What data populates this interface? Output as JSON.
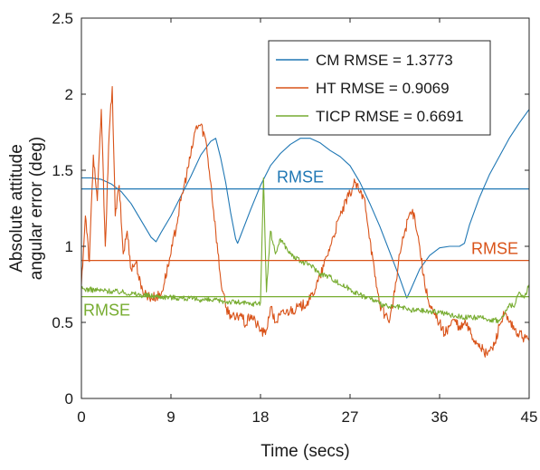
{
  "chart_data": {
    "type": "line",
    "title": "",
    "xlabel": "Time (secs)",
    "ylabel_lines": [
      "Absolute attitude",
      "angular error (deg)"
    ],
    "xlim": [
      0,
      45
    ],
    "ylim": [
      0,
      2.5
    ],
    "xticks": [
      0,
      9,
      18,
      27,
      36,
      45
    ],
    "yticks": [
      0,
      0.5,
      1,
      1.5,
      2,
      2.5
    ],
    "xtick_labels": [
      "0",
      "9",
      "18",
      "27",
      "36",
      "45"
    ],
    "ytick_labels": [
      "0",
      "0.5",
      "1",
      "1.5",
      "2",
      "2.5"
    ],
    "grid": false,
    "legend_position": "top-right",
    "colors": {
      "CM": "#1f77b4",
      "HT": "#d95319",
      "TICP": "#77ac30"
    },
    "series": [
      {
        "name": "CM RMSE = 1.3773",
        "key": "CM",
        "rmse": 1.3773,
        "points": [
          [
            0,
            1.45
          ],
          [
            1,
            1.45
          ],
          [
            2,
            1.44
          ],
          [
            3,
            1.41
          ],
          [
            4,
            1.36
          ],
          [
            5,
            1.28
          ],
          [
            6,
            1.17
          ],
          [
            7,
            1.06
          ],
          [
            7.5,
            1.03
          ],
          [
            8,
            1.09
          ],
          [
            9,
            1.2
          ],
          [
            10,
            1.33
          ],
          [
            11,
            1.46
          ],
          [
            12,
            1.6
          ],
          [
            13,
            1.69
          ],
          [
            13.5,
            1.71
          ],
          [
            14,
            1.58
          ],
          [
            14.5,
            1.42
          ],
          [
            15,
            1.22
          ],
          [
            15.5,
            1.05
          ],
          [
            15.7,
            1.02
          ],
          [
            16,
            1.07
          ],
          [
            17,
            1.24
          ],
          [
            18,
            1.4
          ],
          [
            19,
            1.53
          ],
          [
            20,
            1.61
          ],
          [
            21,
            1.67
          ],
          [
            22,
            1.71
          ],
          [
            23,
            1.71
          ],
          [
            24,
            1.68
          ],
          [
            25,
            1.63
          ],
          [
            26,
            1.59
          ],
          [
            27,
            1.53
          ],
          [
            28,
            1.42
          ],
          [
            29,
            1.28
          ],
          [
            30,
            1.13
          ],
          [
            31,
            0.96
          ],
          [
            32,
            0.79
          ],
          [
            32.7,
            0.66
          ],
          [
            33,
            0.7
          ],
          [
            34,
            0.85
          ],
          [
            35,
            0.94
          ],
          [
            36,
            0.99
          ],
          [
            37,
            1.0
          ],
          [
            38,
            1.0
          ],
          [
            38.5,
            1.02
          ],
          [
            39,
            1.14
          ],
          [
            40,
            1.32
          ],
          [
            41,
            1.47
          ],
          [
            42,
            1.59
          ],
          [
            43,
            1.71
          ],
          [
            44,
            1.81
          ],
          [
            45,
            1.9
          ]
        ]
      },
      {
        "name": "HT RMSE = 0.9069",
        "key": "HT",
        "rmse": 0.9069,
        "points": [
          [
            0,
            0.75
          ],
          [
            0.4,
            1.2
          ],
          [
            0.8,
            0.9
          ],
          [
            1.2,
            1.6
          ],
          [
            1.6,
            1.3
          ],
          [
            2,
            1.9
          ],
          [
            2.4,
            1.0
          ],
          [
            2.8,
            1.75
          ],
          [
            3.1,
            2.05
          ],
          [
            3.4,
            1.2
          ],
          [
            3.8,
            1.4
          ],
          [
            4.2,
            0.95
          ],
          [
            4.6,
            1.1
          ],
          [
            5,
            0.85
          ],
          [
            5.5,
            0.9
          ],
          [
            6,
            0.72
          ],
          [
            7,
            0.66
          ],
          [
            8,
            0.68
          ],
          [
            9,
            0.95
          ],
          [
            10,
            1.3
          ],
          [
            11,
            1.6
          ],
          [
            11.5,
            1.78
          ],
          [
            12,
            1.8
          ],
          [
            12.5,
            1.7
          ],
          [
            13,
            1.42
          ],
          [
            13.5,
            1.1
          ],
          [
            14,
            0.78
          ],
          [
            14.5,
            0.6
          ],
          [
            15,
            0.55
          ],
          [
            15.5,
            0.52
          ],
          [
            16,
            0.56
          ],
          [
            16.5,
            0.48
          ],
          [
            17,
            0.55
          ],
          [
            17.5,
            0.5
          ],
          [
            18,
            0.45
          ],
          [
            18.5,
            0.42
          ],
          [
            19,
            0.6
          ],
          [
            19.5,
            0.5
          ],
          [
            20,
            0.55
          ],
          [
            21,
            0.58
          ],
          [
            22,
            0.6
          ],
          [
            23,
            0.65
          ],
          [
            24,
            0.8
          ],
          [
            25,
            1.0
          ],
          [
            26,
            1.2
          ],
          [
            27,
            1.35
          ],
          [
            27.5,
            1.42
          ],
          [
            28,
            1.35
          ],
          [
            28.5,
            1.3
          ],
          [
            29,
            1.05
          ],
          [
            29.5,
            0.8
          ],
          [
            30,
            0.62
          ],
          [
            30.5,
            0.55
          ],
          [
            31,
            0.52
          ],
          [
            31.5,
            0.7
          ],
          [
            32,
            0.95
          ],
          [
            32.5,
            1.1
          ],
          [
            33,
            1.22
          ],
          [
            33.5,
            1.2
          ],
          [
            34,
            1.0
          ],
          [
            34.5,
            0.75
          ],
          [
            35,
            0.6
          ],
          [
            35.5,
            0.55
          ],
          [
            36,
            0.5
          ],
          [
            36.5,
            0.42
          ],
          [
            37,
            0.48
          ],
          [
            37.5,
            0.52
          ],
          [
            38,
            0.45
          ],
          [
            38.5,
            0.5
          ],
          [
            39,
            0.45
          ],
          [
            39.5,
            0.38
          ],
          [
            40,
            0.36
          ],
          [
            40.5,
            0.29
          ],
          [
            41,
            0.31
          ],
          [
            41.5,
            0.35
          ],
          [
            42,
            0.48
          ],
          [
            42.5,
            0.55
          ],
          [
            43,
            0.5
          ],
          [
            43.5,
            0.45
          ],
          [
            44,
            0.42
          ],
          [
            44.5,
            0.4
          ],
          [
            45,
            0.38
          ]
        ]
      },
      {
        "name": "TICP RMSE = 0.6691",
        "key": "TICP",
        "rmse": 0.6691,
        "points": [
          [
            0,
            0.72
          ],
          [
            2,
            0.71
          ],
          [
            4,
            0.7
          ],
          [
            6,
            0.68
          ],
          [
            8,
            0.67
          ],
          [
            10,
            0.66
          ],
          [
            12,
            0.65
          ],
          [
            14,
            0.64
          ],
          [
            16,
            0.63
          ],
          [
            17,
            0.62
          ],
          [
            18,
            0.63
          ],
          [
            18.3,
            1.45
          ],
          [
            18.6,
            0.7
          ],
          [
            19,
            1.1
          ],
          [
            19.5,
            0.95
          ],
          [
            20,
            1.05
          ],
          [
            21,
            0.95
          ],
          [
            22,
            0.9
          ],
          [
            23,
            0.88
          ],
          [
            24,
            0.82
          ],
          [
            25,
            0.8
          ],
          [
            26,
            0.75
          ],
          [
            27,
            0.72
          ],
          [
            28,
            0.68
          ],
          [
            29,
            0.66
          ],
          [
            30,
            0.62
          ],
          [
            31,
            0.6
          ],
          [
            32,
            0.6
          ],
          [
            33,
            0.58
          ],
          [
            34,
            0.58
          ],
          [
            35,
            0.57
          ],
          [
            36,
            0.57
          ],
          [
            37,
            0.55
          ],
          [
            38,
            0.54
          ],
          [
            39,
            0.53
          ],
          [
            40,
            0.53
          ],
          [
            41,
            0.52
          ],
          [
            42,
            0.51
          ],
          [
            42.5,
            0.55
          ],
          [
            43,
            0.62
          ],
          [
            43.5,
            0.6
          ],
          [
            44,
            0.7
          ],
          [
            44.5,
            0.66
          ],
          [
            45,
            0.75
          ]
        ]
      }
    ],
    "rmse_labels": [
      {
        "text": "RMSE",
        "key": "CM"
      },
      {
        "text": "RMSE",
        "key": "HT"
      },
      {
        "text": "RMSE",
        "key": "TICP"
      }
    ]
  }
}
